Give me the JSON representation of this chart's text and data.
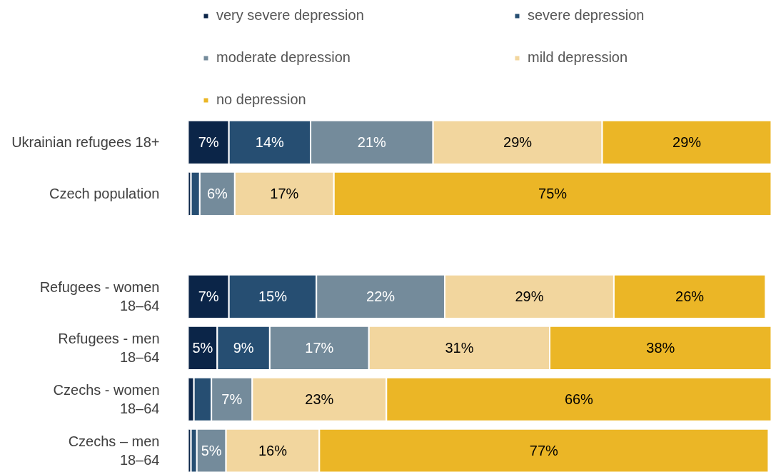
{
  "chart_data": {
    "type": "bar",
    "orientation": "horizontal",
    "stacked": true,
    "legend": "top",
    "grid": false,
    "tick_labels": "y",
    "categories": [
      "Ukrainian refugees 18+",
      "Czech population",
      null,
      "Refugees - women\n18–64",
      "Refugees - men\n18–64",
      "Czechs - women\n18–64",
      "Czechs – men\n18–64"
    ],
    "series": [
      {
        "name": "very severe depression",
        "color": "#0b2548",
        "values": [
          7,
          0.5,
          null,
          7,
          5,
          1,
          0.5
        ],
        "value_labels": [
          "7%",
          null,
          null,
          "7%",
          "5%",
          null,
          null
        ]
      },
      {
        "name": "severe depression",
        "color": "#264e72",
        "values": [
          14,
          1.5,
          null,
          15,
          9,
          3,
          1
        ],
        "value_labels": [
          "14%",
          null,
          null,
          "15%",
          "9%",
          null,
          null
        ]
      },
      {
        "name": "moderate depression",
        "color": "#748b9b",
        "values": [
          21,
          6,
          null,
          22,
          17,
          7,
          5
        ],
        "value_labels": [
          "21%",
          "6%",
          null,
          "22%",
          "17%",
          "7%",
          "5%"
        ]
      },
      {
        "name": "mild depression",
        "color": "#f2d69e",
        "values": [
          29,
          17,
          null,
          29,
          31,
          23,
          16
        ],
        "value_labels": [
          "29%",
          "17%",
          null,
          "29%",
          "31%",
          "23%",
          "16%"
        ]
      },
      {
        "name": "no depression",
        "color": "#ebb626",
        "values": [
          29,
          75,
          null,
          26,
          38,
          66,
          77
        ],
        "value_labels": [
          "29%",
          "75%",
          null,
          "26%",
          "38%",
          "66%",
          "77%"
        ]
      }
    ]
  }
}
